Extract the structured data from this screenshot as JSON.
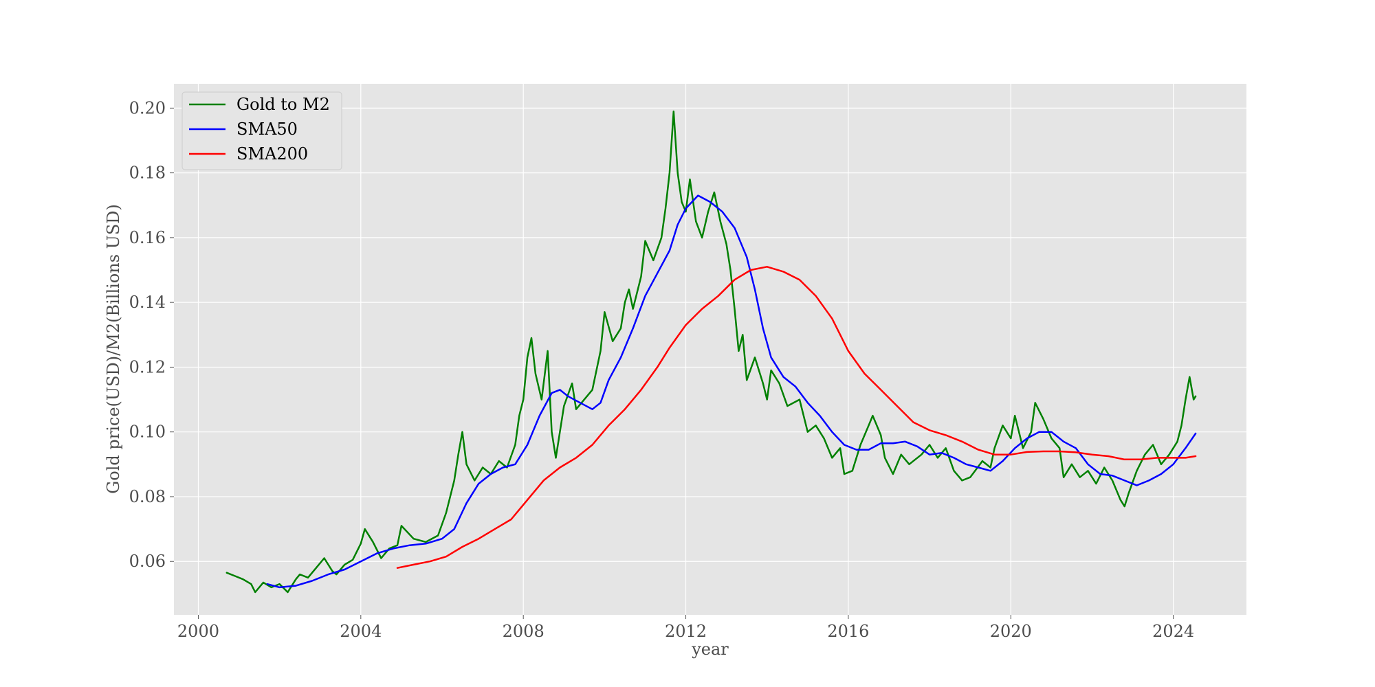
{
  "chart_data": {
    "type": "line",
    "title": "",
    "xlabel": "year",
    "ylabel": "Gold price(USD)/M2(Billions USD)",
    "xlim": [
      1999.4,
      2025.8
    ],
    "ylim": [
      0.0435,
      0.2075
    ],
    "x_ticks": [
      2000,
      2004,
      2008,
      2012,
      2016,
      2020,
      2024
    ],
    "y_ticks": [
      0.06,
      0.08,
      0.1,
      0.12,
      0.14,
      0.16,
      0.18,
      0.2
    ],
    "y_tick_labels": [
      "0.06",
      "0.08",
      "0.10",
      "0.12",
      "0.14",
      "0.16",
      "0.18",
      "0.20"
    ],
    "grid": true,
    "background": "#e5e5e5",
    "legend_position": "upper left",
    "series": [
      {
        "name": "Gold to M2",
        "color": "#008000",
        "points": [
          [
            2000.7,
            0.0565
          ],
          [
            2000.9,
            0.0555
          ],
          [
            2001.1,
            0.0545
          ],
          [
            2001.3,
            0.053
          ],
          [
            2001.4,
            0.0505
          ],
          [
            2001.6,
            0.0535
          ],
          [
            2001.8,
            0.052
          ],
          [
            2002.0,
            0.053
          ],
          [
            2002.2,
            0.0505
          ],
          [
            2002.4,
            0.0545
          ],
          [
            2002.5,
            0.056
          ],
          [
            2002.7,
            0.055
          ],
          [
            2002.9,
            0.058
          ],
          [
            2003.1,
            0.061
          ],
          [
            2003.3,
            0.057
          ],
          [
            2003.4,
            0.056
          ],
          [
            2003.6,
            0.059
          ],
          [
            2003.8,
            0.0605
          ],
          [
            2004.0,
            0.0655
          ],
          [
            2004.1,
            0.07
          ],
          [
            2004.3,
            0.066
          ],
          [
            2004.5,
            0.061
          ],
          [
            2004.7,
            0.064
          ],
          [
            2004.9,
            0.065
          ],
          [
            2005.0,
            0.071
          ],
          [
            2005.3,
            0.067
          ],
          [
            2005.6,
            0.066
          ],
          [
            2005.9,
            0.068
          ],
          [
            2006.1,
            0.075
          ],
          [
            2006.3,
            0.085
          ],
          [
            2006.4,
            0.093
          ],
          [
            2006.5,
            0.1
          ],
          [
            2006.6,
            0.09
          ],
          [
            2006.8,
            0.085
          ],
          [
            2007.0,
            0.089
          ],
          [
            2007.2,
            0.087
          ],
          [
            2007.4,
            0.091
          ],
          [
            2007.6,
            0.089
          ],
          [
            2007.8,
            0.096
          ],
          [
            2007.9,
            0.105
          ],
          [
            2008.0,
            0.11
          ],
          [
            2008.1,
            0.123
          ],
          [
            2008.2,
            0.129
          ],
          [
            2008.3,
            0.118
          ],
          [
            2008.45,
            0.11
          ],
          [
            2008.6,
            0.125
          ],
          [
            2008.7,
            0.1
          ],
          [
            2008.8,
            0.092
          ],
          [
            2008.9,
            0.1
          ],
          [
            2009.0,
            0.108
          ],
          [
            2009.2,
            0.115
          ],
          [
            2009.3,
            0.107
          ],
          [
            2009.5,
            0.11
          ],
          [
            2009.7,
            0.113
          ],
          [
            2009.9,
            0.125
          ],
          [
            2010.0,
            0.137
          ],
          [
            2010.2,
            0.128
          ],
          [
            2010.4,
            0.132
          ],
          [
            2010.5,
            0.14
          ],
          [
            2010.6,
            0.144
          ],
          [
            2010.7,
            0.138
          ],
          [
            2010.9,
            0.148
          ],
          [
            2011.0,
            0.159
          ],
          [
            2011.2,
            0.153
          ],
          [
            2011.4,
            0.16
          ],
          [
            2011.5,
            0.169
          ],
          [
            2011.6,
            0.18
          ],
          [
            2011.7,
            0.199
          ],
          [
            2011.8,
            0.18
          ],
          [
            2011.9,
            0.171
          ],
          [
            2012.0,
            0.168
          ],
          [
            2012.1,
            0.178
          ],
          [
            2012.25,
            0.165
          ],
          [
            2012.4,
            0.16
          ],
          [
            2012.55,
            0.168
          ],
          [
            2012.7,
            0.174
          ],
          [
            2012.85,
            0.165
          ],
          [
            2013.0,
            0.158
          ],
          [
            2013.1,
            0.15
          ],
          [
            2013.2,
            0.138
          ],
          [
            2013.3,
            0.125
          ],
          [
            2013.4,
            0.13
          ],
          [
            2013.5,
            0.116
          ],
          [
            2013.7,
            0.123
          ],
          [
            2013.9,
            0.115
          ],
          [
            2014.0,
            0.11
          ],
          [
            2014.1,
            0.119
          ],
          [
            2014.3,
            0.115
          ],
          [
            2014.5,
            0.108
          ],
          [
            2014.8,
            0.11
          ],
          [
            2015.0,
            0.1
          ],
          [
            2015.2,
            0.102
          ],
          [
            2015.4,
            0.098
          ],
          [
            2015.6,
            0.092
          ],
          [
            2015.8,
            0.095
          ],
          [
            2015.9,
            0.087
          ],
          [
            2016.1,
            0.088
          ],
          [
            2016.3,
            0.096
          ],
          [
            2016.5,
            0.102
          ],
          [
            2016.6,
            0.105
          ],
          [
            2016.8,
            0.099
          ],
          [
            2016.9,
            0.092
          ],
          [
            2017.1,
            0.087
          ],
          [
            2017.3,
            0.093
          ],
          [
            2017.5,
            0.09
          ],
          [
            2017.8,
            0.093
          ],
          [
            2018.0,
            0.096
          ],
          [
            2018.2,
            0.092
          ],
          [
            2018.4,
            0.095
          ],
          [
            2018.6,
            0.088
          ],
          [
            2018.8,
            0.085
          ],
          [
            2019.0,
            0.086
          ],
          [
            2019.3,
            0.091
          ],
          [
            2019.5,
            0.089
          ],
          [
            2019.6,
            0.095
          ],
          [
            2019.8,
            0.102
          ],
          [
            2020.0,
            0.098
          ],
          [
            2020.1,
            0.105
          ],
          [
            2020.3,
            0.095
          ],
          [
            2020.5,
            0.1
          ],
          [
            2020.6,
            0.109
          ],
          [
            2020.8,
            0.104
          ],
          [
            2021.0,
            0.098
          ],
          [
            2021.2,
            0.095
          ],
          [
            2021.3,
            0.086
          ],
          [
            2021.5,
            0.09
          ],
          [
            2021.7,
            0.086
          ],
          [
            2021.9,
            0.088
          ],
          [
            2022.1,
            0.084
          ],
          [
            2022.3,
            0.089
          ],
          [
            2022.5,
            0.085
          ],
          [
            2022.7,
            0.079
          ],
          [
            2022.8,
            0.077
          ],
          [
            2022.9,
            0.081
          ],
          [
            2023.1,
            0.088
          ],
          [
            2023.3,
            0.093
          ],
          [
            2023.5,
            0.096
          ],
          [
            2023.7,
            0.09
          ],
          [
            2023.9,
            0.093
          ],
          [
            2024.1,
            0.097
          ],
          [
            2024.2,
            0.102
          ],
          [
            2024.3,
            0.11
          ],
          [
            2024.4,
            0.117
          ],
          [
            2024.5,
            0.11
          ],
          [
            2024.55,
            0.111
          ]
        ]
      },
      {
        "name": "SMA50",
        "color": "#0000ff",
        "points": [
          [
            2001.7,
            0.053
          ],
          [
            2002.0,
            0.052
          ],
          [
            2002.4,
            0.0525
          ],
          [
            2002.8,
            0.054
          ],
          [
            2003.2,
            0.056
          ],
          [
            2003.6,
            0.0575
          ],
          [
            2004.0,
            0.06
          ],
          [
            2004.4,
            0.0625
          ],
          [
            2004.8,
            0.064
          ],
          [
            2005.2,
            0.065
          ],
          [
            2005.6,
            0.0655
          ],
          [
            2006.0,
            0.067
          ],
          [
            2006.3,
            0.07
          ],
          [
            2006.6,
            0.078
          ],
          [
            2006.9,
            0.084
          ],
          [
            2007.2,
            0.087
          ],
          [
            2007.5,
            0.089
          ],
          [
            2007.8,
            0.09
          ],
          [
            2008.1,
            0.096
          ],
          [
            2008.4,
            0.105
          ],
          [
            2008.7,
            0.112
          ],
          [
            2008.9,
            0.113
          ],
          [
            2009.1,
            0.111
          ],
          [
            2009.4,
            0.109
          ],
          [
            2009.7,
            0.107
          ],
          [
            2009.9,
            0.109
          ],
          [
            2010.1,
            0.116
          ],
          [
            2010.4,
            0.123
          ],
          [
            2010.7,
            0.132
          ],
          [
            2011.0,
            0.142
          ],
          [
            2011.3,
            0.149
          ],
          [
            2011.6,
            0.156
          ],
          [
            2011.8,
            0.164
          ],
          [
            2012.0,
            0.169
          ],
          [
            2012.3,
            0.173
          ],
          [
            2012.6,
            0.171
          ],
          [
            2012.9,
            0.168
          ],
          [
            2013.2,
            0.163
          ],
          [
            2013.5,
            0.154
          ],
          [
            2013.7,
            0.144
          ],
          [
            2013.9,
            0.132
          ],
          [
            2014.1,
            0.123
          ],
          [
            2014.4,
            0.117
          ],
          [
            2014.7,
            0.114
          ],
          [
            2015.0,
            0.109
          ],
          [
            2015.3,
            0.105
          ],
          [
            2015.6,
            0.1
          ],
          [
            2015.9,
            0.096
          ],
          [
            2016.2,
            0.0945
          ],
          [
            2016.5,
            0.0945
          ],
          [
            2016.8,
            0.0965
          ],
          [
            2017.1,
            0.0965
          ],
          [
            2017.4,
            0.097
          ],
          [
            2017.7,
            0.0955
          ],
          [
            2018.0,
            0.093
          ],
          [
            2018.3,
            0.0935
          ],
          [
            2018.6,
            0.092
          ],
          [
            2018.9,
            0.09
          ],
          [
            2019.2,
            0.089
          ],
          [
            2019.5,
            0.088
          ],
          [
            2019.8,
            0.091
          ],
          [
            2020.1,
            0.095
          ],
          [
            2020.4,
            0.098
          ],
          [
            2020.7,
            0.1
          ],
          [
            2021.0,
            0.1
          ],
          [
            2021.3,
            0.097
          ],
          [
            2021.6,
            0.095
          ],
          [
            2021.9,
            0.09
          ],
          [
            2022.2,
            0.087
          ],
          [
            2022.5,
            0.0865
          ],
          [
            2022.8,
            0.085
          ],
          [
            2023.1,
            0.0835
          ],
          [
            2023.4,
            0.085
          ],
          [
            2023.7,
            0.087
          ],
          [
            2024.0,
            0.09
          ],
          [
            2024.3,
            0.095
          ],
          [
            2024.55,
            0.0995
          ]
        ]
      },
      {
        "name": "SMA200",
        "color": "#ff0000",
        "points": [
          [
            2004.9,
            0.058
          ],
          [
            2005.3,
            0.059
          ],
          [
            2005.7,
            0.06
          ],
          [
            2006.1,
            0.0615
          ],
          [
            2006.5,
            0.0645
          ],
          [
            2006.9,
            0.067
          ],
          [
            2007.3,
            0.07
          ],
          [
            2007.7,
            0.073
          ],
          [
            2008.1,
            0.079
          ],
          [
            2008.5,
            0.085
          ],
          [
            2008.9,
            0.089
          ],
          [
            2009.3,
            0.092
          ],
          [
            2009.7,
            0.096
          ],
          [
            2010.1,
            0.102
          ],
          [
            2010.5,
            0.107
          ],
          [
            2010.9,
            0.113
          ],
          [
            2011.3,
            0.12
          ],
          [
            2011.6,
            0.126
          ],
          [
            2012.0,
            0.133
          ],
          [
            2012.4,
            0.138
          ],
          [
            2012.8,
            0.142
          ],
          [
            2013.2,
            0.147
          ],
          [
            2013.6,
            0.15
          ],
          [
            2014.0,
            0.151
          ],
          [
            2014.4,
            0.1495
          ],
          [
            2014.8,
            0.147
          ],
          [
            2015.2,
            0.142
          ],
          [
            2015.6,
            0.135
          ],
          [
            2016.0,
            0.125
          ],
          [
            2016.4,
            0.118
          ],
          [
            2016.8,
            0.113
          ],
          [
            2017.2,
            0.108
          ],
          [
            2017.6,
            0.103
          ],
          [
            2018.0,
            0.1005
          ],
          [
            2018.4,
            0.099
          ],
          [
            2018.8,
            0.097
          ],
          [
            2019.2,
            0.0945
          ],
          [
            2019.6,
            0.093
          ],
          [
            2020.0,
            0.093
          ],
          [
            2020.4,
            0.0938
          ],
          [
            2020.8,
            0.094
          ],
          [
            2021.2,
            0.094
          ],
          [
            2021.6,
            0.0937
          ],
          [
            2022.0,
            0.093
          ],
          [
            2022.4,
            0.0925
          ],
          [
            2022.8,
            0.0915
          ],
          [
            2023.2,
            0.0915
          ],
          [
            2023.6,
            0.092
          ],
          [
            2024.0,
            0.092
          ],
          [
            2024.3,
            0.092
          ],
          [
            2024.55,
            0.0925
          ]
        ]
      }
    ]
  }
}
